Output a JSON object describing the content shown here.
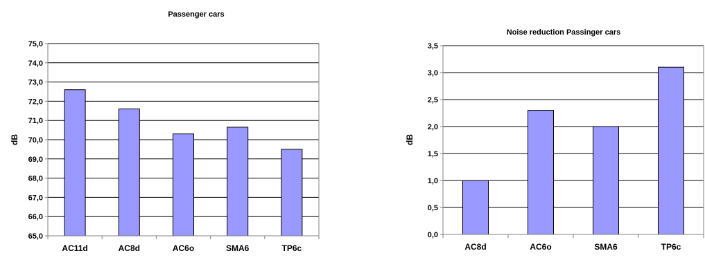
{
  "chart_data": [
    {
      "type": "bar",
      "title": "Passenger cars",
      "xlabel": "",
      "ylabel": "dB",
      "categories": [
        "AC11d",
        "AC8d",
        "AC6o",
        "SMA6",
        "TP6c"
      ],
      "values": [
        72.6,
        71.6,
        70.3,
        70.65,
        69.5
      ],
      "ylim": [
        65,
        75
      ],
      "ytick_step": 1,
      "ytick_labels": [
        "65,0",
        "66,0",
        "67,0",
        "68,0",
        "69,0",
        "70,0",
        "71,0",
        "72,0",
        "73,0",
        "74,0",
        "75,0"
      ],
      "grid": true,
      "legend": "none",
      "colors": {
        "bar": "#9999ff",
        "bar_edge": "#000000",
        "axis": "#808080",
        "grid": "#000000"
      }
    },
    {
      "type": "bar",
      "title": "Noise reduction Passinger cars",
      "xlabel": "",
      "ylabel": "dB",
      "categories": [
        "AC8d",
        "AC6o",
        "SMA6",
        "TP6c"
      ],
      "values": [
        1.0,
        2.3,
        2.0,
        3.1
      ],
      "ylim": [
        0,
        3.5
      ],
      "ytick_step": 0.5,
      "ytick_labels": [
        "0,0",
        "0,5",
        "1,0",
        "1,5",
        "2,0",
        "2,5",
        "3,0",
        "3,5"
      ],
      "grid": true,
      "legend": "none",
      "colors": {
        "bar": "#9999ff",
        "bar_edge": "#000000",
        "axis": "#808080",
        "grid": "#000000"
      }
    }
  ]
}
